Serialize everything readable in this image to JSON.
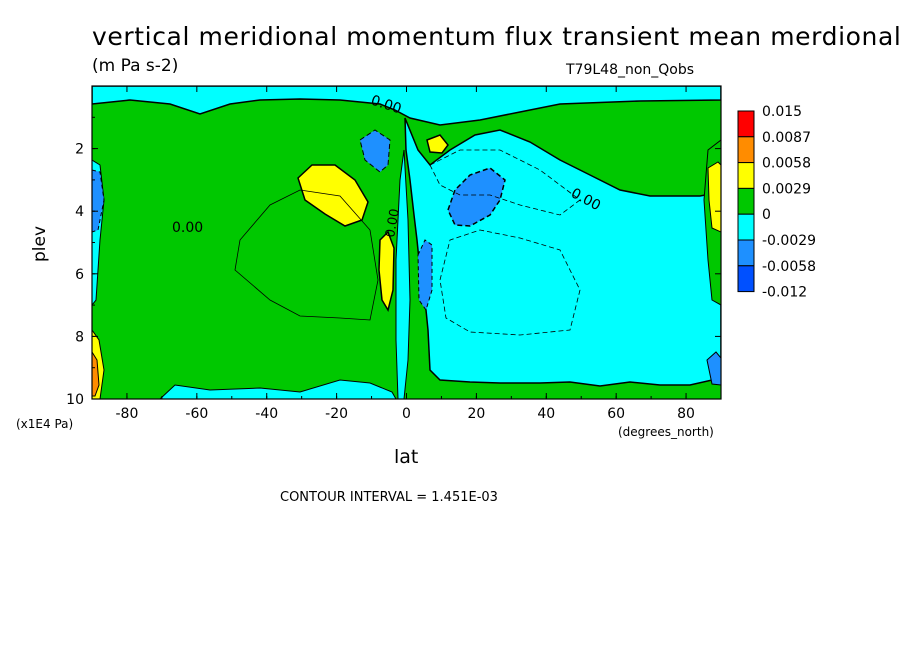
{
  "chart_data": {
    "type": "heatmap",
    "title": "vertical meridional momentum flux transient mean merdional",
    "units": "(m Pa s-2)",
    "run_name": "T79L48_non_Qobs",
    "xlabel": "lat",
    "x_units": "(degrees_north)",
    "ylabel": "plev",
    "y_scale_note": "(x1E4 Pa)",
    "contour_interval_text": "CONTOUR INTERVAL = 1.451E-03",
    "xlim": [
      -90,
      90
    ],
    "ylim": [
      10,
      0
    ],
    "x_ticks": [
      "-80",
      "-60",
      "-40",
      "-20",
      "0",
      "20",
      "40",
      "60",
      "80"
    ],
    "y_ticks": [
      "2",
      "4",
      "6",
      "8",
      "10"
    ],
    "contour_labels": [
      "0.00",
      "0.00",
      "0.00",
      "0.00"
    ],
    "legend": {
      "labels": [
        "0.015",
        "0.0087",
        "0.0058",
        "0.0029",
        "0",
        "-0.0029",
        "-0.0058",
        "-0.012"
      ],
      "colors": [
        "#ff0000",
        "#ff8c00",
        "#ffff00",
        "#00c800",
        "#00ffff",
        "#1e90ff",
        "#0050ff"
      ]
    },
    "colors": {
      "background_field": "#00c800",
      "negative_light": "#00ffff",
      "negative_mid": "#1e90ff",
      "positive_mid": "#ffff00",
      "positive_high": "#ff8c00"
    }
  }
}
